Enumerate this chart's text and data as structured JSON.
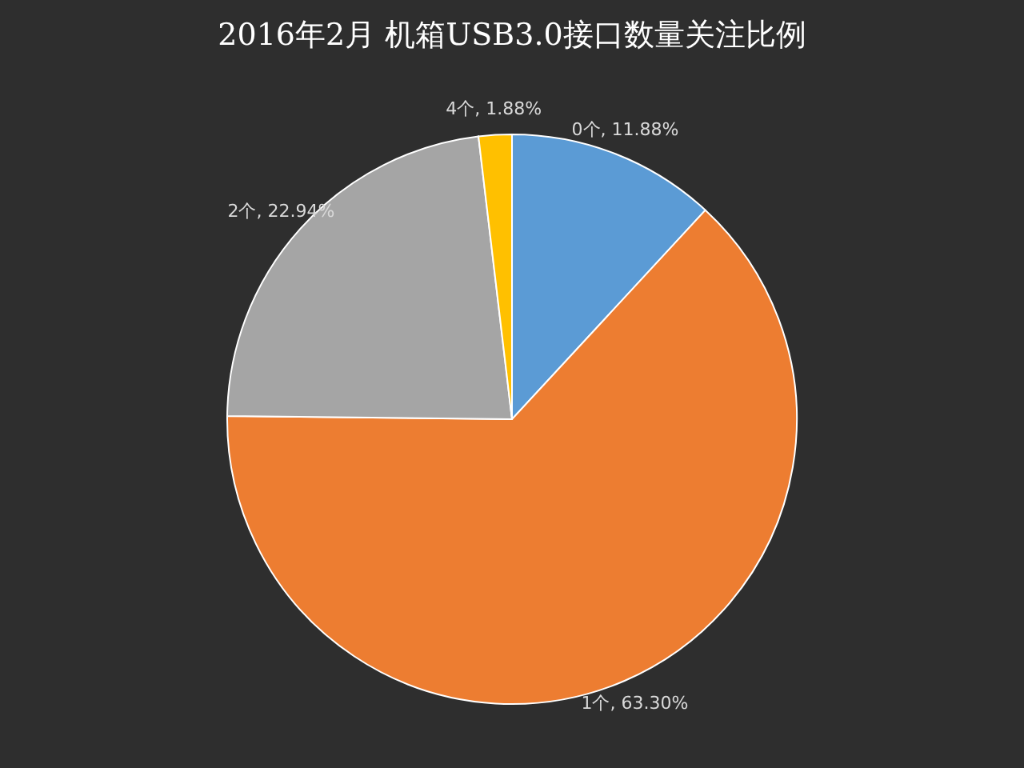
{
  "chart_data": {
    "type": "pie",
    "title": "2016年2月 机箱USB3.0接口数量关注比例",
    "categories": [
      "0个",
      "1个",
      "2个",
      "4个"
    ],
    "values": [
      11.88,
      63.3,
      22.94,
      1.88
    ],
    "colors": [
      "#5b9bd5",
      "#ed7d31",
      "#a5a5a5",
      "#ffc000"
    ],
    "value_labels": [
      "11.88%",
      "63.30%",
      "22.94%",
      "1.88%"
    ],
    "legend": false
  }
}
